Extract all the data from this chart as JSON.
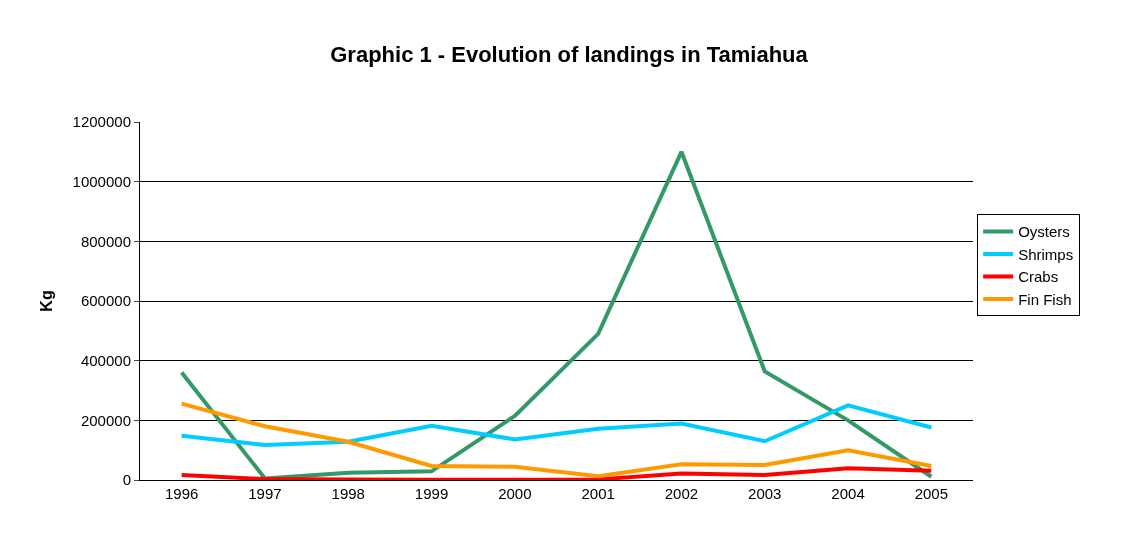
{
  "chart_data": {
    "type": "line",
    "title": "Graphic 1 - Evolution of landings in Tamiahua",
    "ylabel": "Kg",
    "categories": [
      "1996",
      "1997",
      "1998",
      "1999",
      "2000",
      "2001",
      "2002",
      "2003",
      "2004",
      "2005"
    ],
    "series": [
      {
        "name": "Oysters",
        "color": "#339966",
        "values": [
          360000,
          5000,
          24000,
          29000,
          215000,
          490000,
          1100000,
          364000,
          200000,
          11000
        ]
      },
      {
        "name": "Shrimps",
        "color": "#00ccff",
        "values": [
          148000,
          117000,
          128000,
          182000,
          136000,
          172000,
          189000,
          130000,
          250000,
          176000
        ]
      },
      {
        "name": "Crabs",
        "color": "#ff0000",
        "values": [
          17000,
          3000,
          2000,
          1000,
          1000,
          2000,
          22000,
          17000,
          39000,
          31000
        ]
      },
      {
        "name": "Fin Fish",
        "color": "#ff9900",
        "values": [
          256000,
          180000,
          128000,
          47000,
          44000,
          13000,
          53000,
          50000,
          100000,
          47000
        ]
      }
    ],
    "ylim": [
      0,
      1200000
    ],
    "yticks": [
      0,
      200000,
      400000,
      600000,
      800000,
      1000000,
      1200000
    ],
    "grid": "y",
    "legend": "right",
    "marker": "none",
    "line_style": "solid"
  }
}
